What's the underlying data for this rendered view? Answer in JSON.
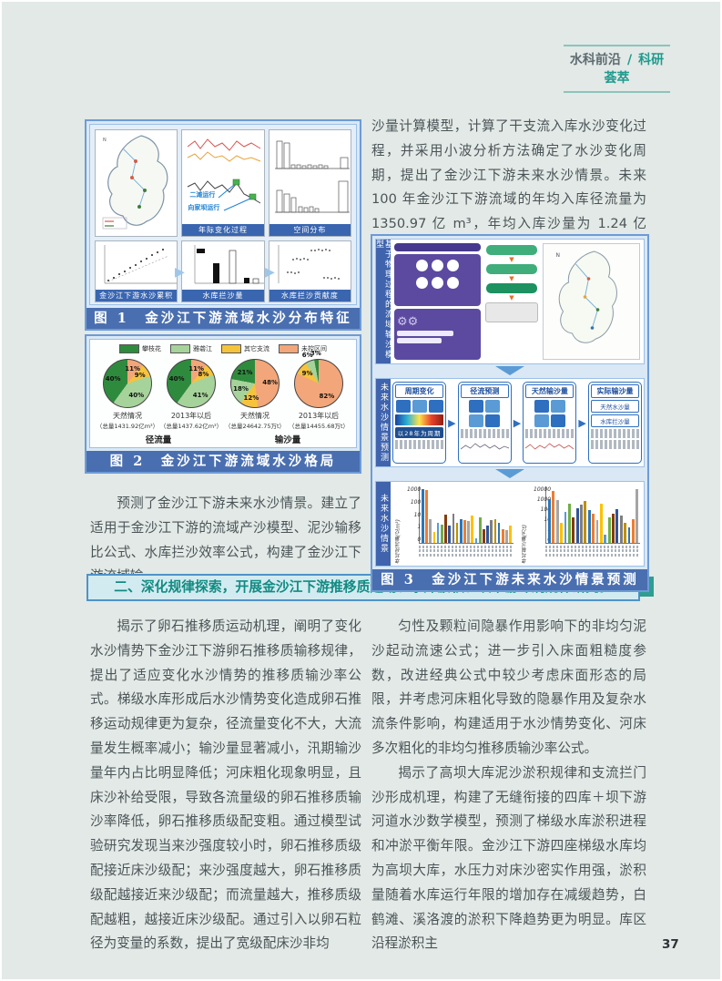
{
  "header": {
    "section": "水科前沿",
    "divider": "/",
    "subsection": "科研荟萃"
  },
  "page_number": "37",
  "paragraphs": {
    "intro_right": "沙量计算模型，计算了干支流入库水沙变化过程，并采用小波分析方法确定了水沙变化周期，提出了金沙江下游未来水沙情景。未来 100 年金沙江下游流域的年均入库径流量为 1350.97 亿 m³，年均入库沙量为 1.24 亿 t。",
    "left_mid": "预测了金沙江下游未来水沙情景。建立了适用于金沙江下游的流域产沙模型、泥沙输移比公式、水库拦沙效率公式，构建了金沙江下游流域输",
    "banner": "二、深化规律探索，开展金沙江下游推移质运动、水库淤积、坝下游冲刷规律研究。",
    "left_body": "揭示了卵石推移质运动机理，阐明了变化水沙情势下金沙江下游卵石推移质输移规律，提出了适应变化水沙情势的推移质输沙率公式。梯级水库形成后水沙情势变化造成卵石推移运动规律更为复杂，径流量变化不大，大流量发生概率减小；输沙量显著减小，汛期输沙量年内占比明显降低；河床粗化现象明显，且床沙补给受限，导致各流量级的卵石推移质输沙率降低，卵石推移质级配变粗。通过模型试验研究发现当来沙强度较小时，卵石推移质级配接近床沙级配；来沙强度越大，卵石推移质级配越接近来沙级配；而流量越大，推移质级配越粗，越接近床沙级配。通过引入以卵石粒径为变量的系数，提出了宽级配床沙非均",
    "right_body_1": "匀性及颗粒间隐暴作用影响下的非均匀泥沙起动流速公式；进一步引入床面粗糙度参数，改进经典公式中较少考虑床面形态的局限，并考虑河床粗化导致的隐暴作用及复杂水流条件影响，构建适用于水沙情势变化、河床多次粗化的非均匀推移质输沙率公式。",
    "right_body_2": "揭示了高坝大库泥沙淤积规律和支流拦门沙形成机理，构建了无缝衔接的四库＋坝下游河道水沙数学模型，预测了梯级水库淤积进程和冲淤平衡年限。金沙江下游四座梯级水库均为高坝大库，水压力对床沙密实作用强，淤积量随着水库运行年限的增加存在减缓趋势，白鹤滩、溪洛渡的淤积下降趋势更为明显。库区沿程淤积主"
  },
  "figure1": {
    "caption": "图 1　金沙江下游流域水沙分布特征",
    "panel_labels": [
      "年际变化过程",
      "空间分布",
      "金沙江下游水沙累积曲线",
      "水库拦沙量",
      "水库拦沙贡献度"
    ],
    "annotations": [
      "二滩运行",
      "向家坝运行"
    ]
  },
  "figure2": {
    "caption": "图 2　金沙江下游流域水沙格局",
    "legend": [
      {
        "label": "攀枝花",
        "color": "#2e8b3d"
      },
      {
        "label": "雅砻江",
        "color": "#a6d39a"
      },
      {
        "label": "其它支流",
        "color": "#f6c33c"
      },
      {
        "label": "未控区间",
        "color": "#f2a679"
      }
    ],
    "group_labels": [
      "径流量",
      "输沙量"
    ],
    "pies": [
      {
        "name": "天然情况",
        "total": "（总量1431.92亿m³）",
        "slices": [
          {
            "pct": 11,
            "ci": 3
          },
          {
            "pct": 9,
            "ci": 2
          },
          {
            "pct": 40,
            "ci": 1
          },
          {
            "pct": 40,
            "ci": 0
          }
        ]
      },
      {
        "name": "2013年以后",
        "total": "（总量1437.62亿m³）",
        "slices": [
          {
            "pct": 11,
            "ci": 3
          },
          {
            "pct": 8,
            "ci": 2
          },
          {
            "pct": 41,
            "ci": 1
          },
          {
            "pct": 40,
            "ci": 0
          }
        ]
      },
      {
        "name": "天然情况",
        "total": "（总量24642.75万t）",
        "slices": [
          {
            "pct": 48,
            "ci": 3
          },
          {
            "pct": 12,
            "ci": 2
          },
          {
            "pct": 18,
            "ci": 1
          },
          {
            "pct": 21,
            "ci": 0
          }
        ]
      },
      {
        "name": "2013年以后",
        "total": "（总量14455.68万t）",
        "slices": [
          {
            "pct": 82,
            "ci": 3
          },
          {
            "pct": 9,
            "ci": 2
          },
          {
            "pct": 6,
            "ci": 1
          },
          {
            "pct": 3,
            "ci": 0
          }
        ]
      }
    ]
  },
  "figure3": {
    "caption": "图 3　金沙江下游未来水沙情景预测",
    "side_label_top": "基于物理过程的流域输沙模型",
    "side_label_mid": "未来水沙情景预测",
    "side_label_bottom": "未来水沙情景",
    "mid_headers": [
      "周期变化",
      "径流预测",
      "天然输沙量",
      "实际输沙量"
    ],
    "mid_note": "以28年为周期",
    "right_boxes": [
      "天然水沙量",
      "水库拦沙量"
    ],
    "palette": [
      "#2e75b6",
      "#ed7d31",
      "#a5a5a5",
      "#ffc000",
      "#5b9bd5",
      "#70ad47",
      "#843c0c",
      "#2f5597",
      "#7f7f7f",
      "#bf8f00"
    ],
    "charts": [
      {
        "ylabel": "年均径流量(亿m³)",
        "yticks": [
          "1000",
          "100",
          "10",
          "1",
          "0"
        ],
        "bars": [
          0.95,
          0.93,
          0.42,
          0.2,
          0.35,
          0.33,
          0.5,
          0.3,
          0.52,
          0.35,
          0.42,
          0.4,
          0.38,
          0.48,
          0.08,
          0.45,
          0.25,
          0.3,
          0.4,
          0.42,
          0.35,
          0.24,
          0.22,
          0.3
        ]
      },
      {
        "ylabel": "年均输沙量(万t)",
        "yticks": [
          "10000",
          "1000",
          "100",
          "10",
          "1",
          "0"
        ],
        "bars": [
          0.78,
          0.92,
          0.76,
          0.35,
          0.55,
          0.7,
          0.45,
          0.62,
          0.68,
          0.74,
          0.58,
          0.52,
          0.4,
          0.7,
          0.15,
          0.45,
          0.52,
          0.6,
          0.48,
          0.35,
          0.28,
          0.42,
          0.95
        ]
      }
    ]
  }
}
